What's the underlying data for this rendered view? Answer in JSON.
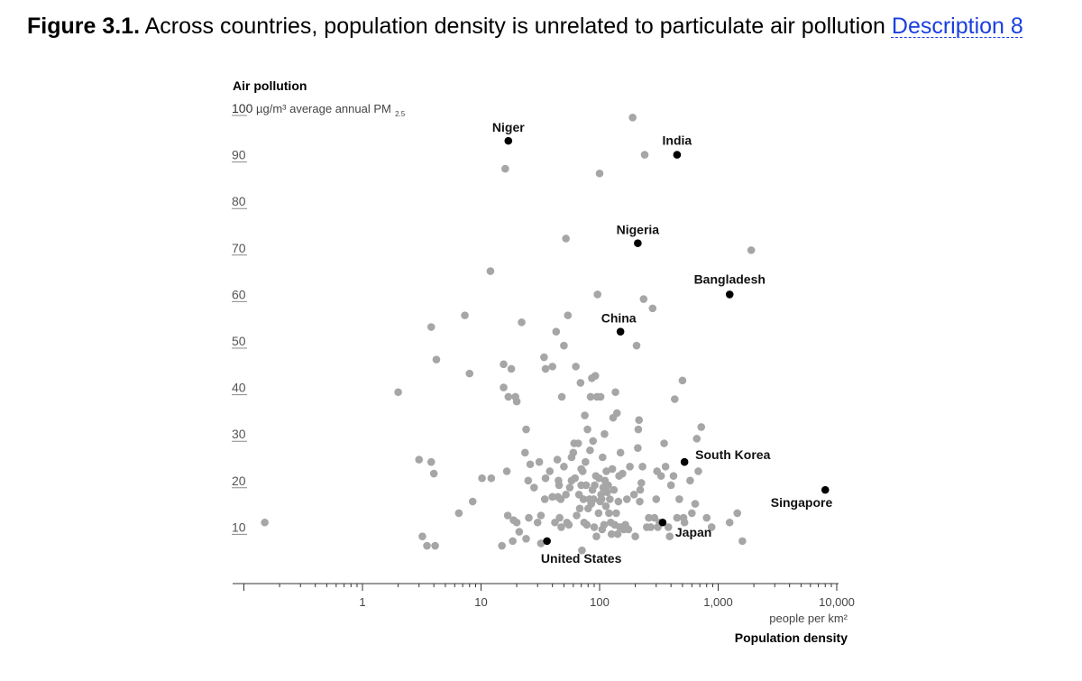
{
  "caption": {
    "figure_number": "Figure 3.1.",
    "text": "Across countries, population density is unrelated to particulate air pollution",
    "link_label": "Description 8"
  },
  "chart_data": {
    "type": "scatter",
    "title": "",
    "ylabel": "Air pollution",
    "ysublabel_main": "µg/m³ average annual PM",
    "ysublabel_sub": "2.5",
    "xlabel": "Population density",
    "xunit": "people per km²",
    "xscale": "log",
    "xlim": [
      0.1,
      10000
    ],
    "ylim": [
      0,
      100
    ],
    "yticks": [
      10,
      20,
      30,
      40,
      50,
      60,
      70,
      80,
      90,
      100
    ],
    "xticks": [
      {
        "value": 1,
        "label": "1"
      },
      {
        "value": 10,
        "label": "10"
      },
      {
        "value": 100,
        "label": "100"
      },
      {
        "value": 1000,
        "label": "1,000"
      },
      {
        "value": 10000,
        "label": "10,000"
      }
    ],
    "colors": {
      "other": "#a6a6a6",
      "highlight": "#000000"
    },
    "highlighted": [
      {
        "label": "Niger",
        "x": 17,
        "y": 93
      },
      {
        "label": "India",
        "x": 450,
        "y": 90
      },
      {
        "label": "Nigeria",
        "x": 210,
        "y": 71
      },
      {
        "label": "Bangladesh",
        "x": 1250,
        "y": 60
      },
      {
        "label": "China",
        "x": 150,
        "y": 52
      },
      {
        "label": "South Korea",
        "x": 520,
        "y": 24
      },
      {
        "label": "Singapore",
        "x": 8000,
        "y": 18
      },
      {
        "label": "Japan",
        "x": 340,
        "y": 11
      },
      {
        "label": "United States",
        "x": 36,
        "y": 7
      }
    ],
    "points": [
      [
        0.15,
        11
      ],
      [
        2,
        39
      ],
      [
        3,
        24.5
      ],
      [
        3.2,
        8
      ],
      [
        3.5,
        6
      ],
      [
        3.8,
        24
      ],
      [
        3.8,
        53
      ],
      [
        4,
        21.5
      ],
      [
        4.1,
        6
      ],
      [
        4.2,
        46
      ],
      [
        6.5,
        13
      ],
      [
        7.3,
        55.5
      ],
      [
        8,
        43
      ],
      [
        8.5,
        15.5
      ],
      [
        10.2,
        20.5
      ],
      [
        12,
        65
      ],
      [
        12.2,
        20.5
      ],
      [
        15,
        6
      ],
      [
        15.5,
        40
      ],
      [
        15.5,
        45
      ],
      [
        16,
        87
      ],
      [
        16.5,
        22
      ],
      [
        16.8,
        12.5
      ],
      [
        17,
        38
      ],
      [
        18,
        44
      ],
      [
        18.5,
        7
      ],
      [
        18.8,
        11.5
      ],
      [
        19.5,
        38
      ],
      [
        20,
        11
      ],
      [
        20,
        37
      ],
      [
        21,
        9
      ],
      [
        22,
        54
      ],
      [
        23.5,
        26
      ],
      [
        24,
        31
      ],
      [
        24,
        7.5
      ],
      [
        25,
        20
      ],
      [
        25.3,
        12
      ],
      [
        26,
        23.5
      ],
      [
        28,
        18.5
      ],
      [
        30,
        11
      ],
      [
        31,
        24
      ],
      [
        32,
        6.5
      ],
      [
        32,
        12.5
      ],
      [
        34,
        46.5
      ],
      [
        34.5,
        16
      ],
      [
        35,
        44
      ],
      [
        35,
        20.5
      ],
      [
        38,
        22
      ],
      [
        40,
        16.5
      ],
      [
        40,
        44.5
      ],
      [
        42,
        11
      ],
      [
        43,
        52
      ],
      [
        44,
        24.5
      ],
      [
        44.5,
        16.5
      ],
      [
        45,
        20
      ],
      [
        45.5,
        19
      ],
      [
        46,
        12
      ],
      [
        47,
        16
      ],
      [
        47.5,
        10
      ],
      [
        48,
        38
      ],
      [
        50,
        23
      ],
      [
        50,
        49
      ],
      [
        52,
        17
      ],
      [
        52,
        72
      ],
      [
        53,
        11
      ],
      [
        54,
        55.5
      ],
      [
        55,
        10.5
      ],
      [
        56,
        18.5
      ],
      [
        58,
        20
      ],
      [
        58,
        25
      ],
      [
        60,
        26
      ],
      [
        61,
        28
      ],
      [
        62,
        20.5
      ],
      [
        63,
        44.5
      ],
      [
        64,
        12.5
      ],
      [
        66,
        28
      ],
      [
        67,
        17
      ],
      [
        68,
        14
      ],
      [
        69,
        41
      ],
      [
        70,
        19
      ],
      [
        70,
        22.5
      ],
      [
        71,
        5
      ],
      [
        72,
        22
      ],
      [
        73,
        16
      ],
      [
        74,
        11
      ],
      [
        75,
        34
      ],
      [
        76,
        24
      ],
      [
        77,
        19
      ],
      [
        78,
        10.5
      ],
      [
        79,
        31
      ],
      [
        80,
        14
      ],
      [
        82,
        16
      ],
      [
        83,
        26.5
      ],
      [
        84,
        38
      ],
      [
        85,
        15
      ],
      [
        86,
        42
      ],
      [
        87,
        18
      ],
      [
        88,
        28.5
      ],
      [
        89,
        16
      ],
      [
        90,
        10
      ],
      [
        91,
        19
      ],
      [
        92,
        42.5
      ],
      [
        93,
        21
      ],
      [
        94,
        8
      ],
      [
        95,
        38
      ],
      [
        96,
        60
      ],
      [
        98,
        13
      ],
      [
        99,
        20.5
      ],
      [
        100,
        86
      ],
      [
        101,
        15.5
      ],
      [
        102,
        38
      ],
      [
        103,
        17
      ],
      [
        104,
        16
      ],
      [
        105,
        9.5
      ],
      [
        106,
        25
      ],
      [
        107,
        18.5
      ],
      [
        109,
        10.5
      ],
      [
        110,
        30
      ],
      [
        111,
        20
      ],
      [
        113,
        14.5
      ],
      [
        114,
        22
      ],
      [
        116,
        17.5
      ],
      [
        118,
        19
      ],
      [
        120,
        13
      ],
      [
        122,
        16
      ],
      [
        124,
        11
      ],
      [
        126,
        8.5
      ],
      [
        128,
        22.5
      ],
      [
        130,
        33.5
      ],
      [
        132,
        18
      ],
      [
        134,
        10.5
      ],
      [
        136,
        39
      ],
      [
        138,
        13
      ],
      [
        140,
        34.5
      ],
      [
        142,
        8.5
      ],
      [
        144,
        15.5
      ],
      [
        146,
        21
      ],
      [
        148,
        10
      ],
      [
        150,
        26
      ],
      [
        153,
        10
      ],
      [
        156,
        21.5
      ],
      [
        160,
        9.5
      ],
      [
        165,
        10.5
      ],
      [
        170,
        16
      ],
      [
        175,
        9.5
      ],
      [
        180,
        23
      ],
      [
        190,
        98
      ],
      [
        195,
        17
      ],
      [
        200,
        8
      ],
      [
        205,
        49
      ],
      [
        210,
        27
      ],
      [
        212,
        31
      ],
      [
        215,
        33
      ],
      [
        218,
        15.5
      ],
      [
        220,
        18
      ],
      [
        225,
        19.5
      ],
      [
        230,
        23
      ],
      [
        235,
        59
      ],
      [
        240,
        90
      ],
      [
        250,
        10
      ],
      [
        260,
        12
      ],
      [
        270,
        10
      ],
      [
        280,
        57
      ],
      [
        290,
        12
      ],
      [
        300,
        16
      ],
      [
        305,
        22
      ],
      [
        310,
        10
      ],
      [
        320,
        11
      ],
      [
        330,
        21
      ],
      [
        350,
        28
      ],
      [
        360,
        23
      ],
      [
        380,
        10
      ],
      [
        390,
        8
      ],
      [
        400,
        19
      ],
      [
        420,
        21
      ],
      [
        430,
        37.5
      ],
      [
        450,
        12
      ],
      [
        470,
        16
      ],
      [
        500,
        41.5
      ],
      [
        510,
        12
      ],
      [
        520,
        11
      ],
      [
        580,
        20
      ],
      [
        600,
        13
      ],
      [
        640,
        15
      ],
      [
        660,
        29
      ],
      [
        680,
        22
      ],
      [
        720,
        31.5
      ],
      [
        800,
        12
      ],
      [
        880,
        10
      ],
      [
        1250,
        11
      ],
      [
        1450,
        13
      ],
      [
        1600,
        7
      ],
      [
        1900,
        69.5
      ]
    ]
  }
}
